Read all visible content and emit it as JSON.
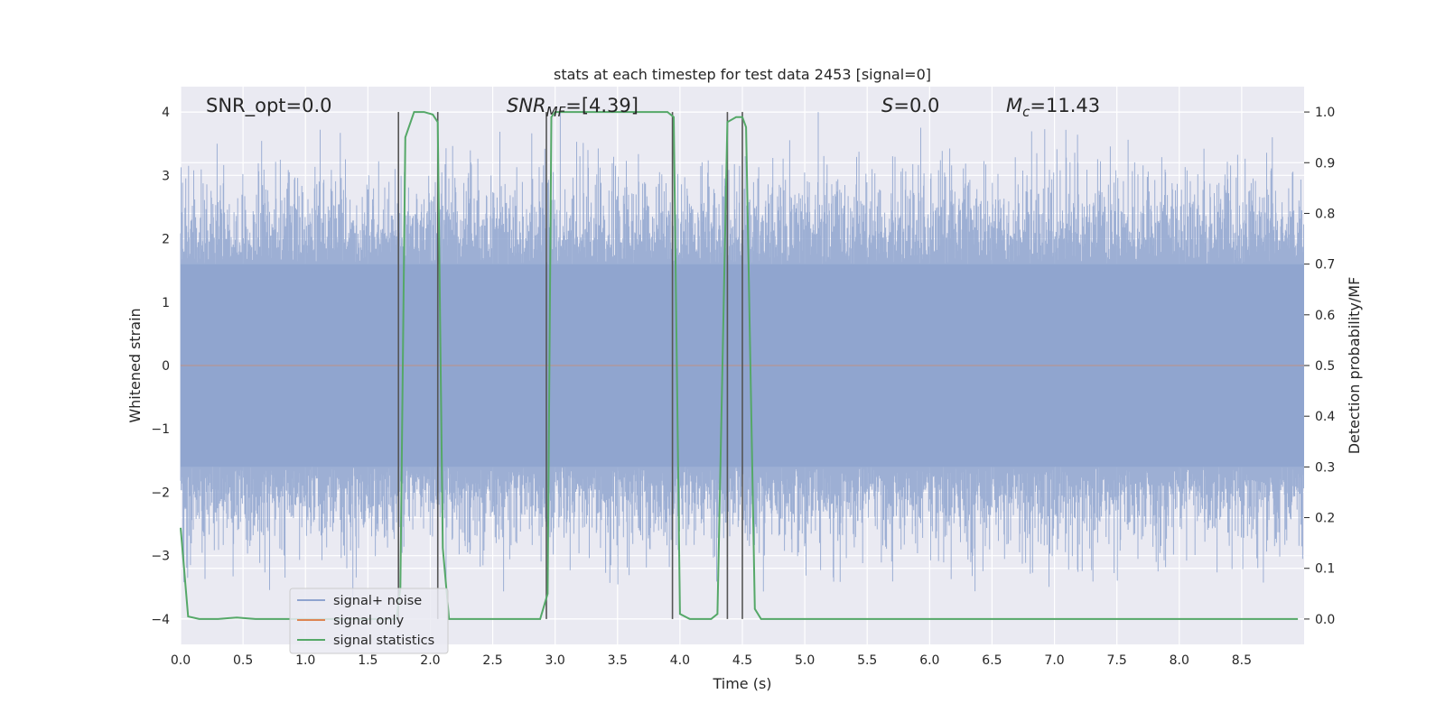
{
  "chart_data": {
    "type": "line",
    "title": "stats at each timestep for test data 2453 [signal=0]",
    "xlabel": "Time (s)",
    "ylabel": "Whitened strain",
    "y2label": "Detection probability/MF",
    "xlim": [
      0,
      9.0
    ],
    "ylim": [
      -4.4,
      4.4
    ],
    "y2lim": [
      -0.05,
      1.05
    ],
    "xticks": [
      "0.0",
      "0.5",
      "1.0",
      "1.5",
      "2.0",
      "2.5",
      "3.0",
      "3.5",
      "4.0",
      "4.5",
      "5.0",
      "5.5",
      "6.0",
      "6.5",
      "7.0",
      "7.5",
      "8.0",
      "8.5"
    ],
    "yticks": [
      "−4",
      "−3",
      "−2",
      "−1",
      "0",
      "1",
      "2",
      "3",
      "4"
    ],
    "y2ticks": [
      "0.0",
      "0.1",
      "0.2",
      "0.3",
      "0.4",
      "0.5",
      "0.6",
      "0.7",
      "0.8",
      "0.9",
      "1.0"
    ],
    "grid": true,
    "legend_position": "lower-left",
    "annotations": {
      "snr_opt": "SNR_opt=0.0",
      "snr_mf_main": "SNR",
      "snr_mf_sub": "MF",
      "snr_mf_value": "=[4.39]",
      "s_main": "S",
      "s_value": "=0.0",
      "mc_main": "M",
      "mc_sub": "c",
      "mc_value": "=11.43"
    },
    "series": [
      {
        "name": "signal+ noise",
        "axis": "left",
        "color": "#8fa4cf",
        "style": "dense noise",
        "amplitude_approx": 1.6,
        "peak_range": [
          -3.9,
          4.0
        ]
      },
      {
        "name": "signal only",
        "axis": "left",
        "color": "#dd8452",
        "values_note": "zero"
      },
      {
        "name": "signal statistics",
        "axis": "right",
        "color": "#55a868",
        "x": [
          0.0,
          0.06,
          0.15,
          0.3,
          0.45,
          0.6,
          0.8,
          1.0,
          1.2,
          1.4,
          1.6,
          1.73,
          1.76,
          1.8,
          1.87,
          1.95,
          2.02,
          2.06,
          2.1,
          2.15,
          2.22,
          2.3,
          2.5,
          2.7,
          2.88,
          2.94,
          2.97,
          3.0,
          3.5,
          3.9,
          3.95,
          4.0,
          4.08,
          4.15,
          4.25,
          4.3,
          4.38,
          4.45,
          4.5,
          4.53,
          4.6,
          4.65,
          4.75,
          5.0,
          6.0,
          7.0,
          8.0,
          8.95
        ],
        "values": [
          0.18,
          0.005,
          0.0,
          0.0,
          0.003,
          0.0,
          0.0,
          0.0,
          0.0,
          0.0,
          0.0,
          0.0,
          0.06,
          0.95,
          1.0,
          1.0,
          0.995,
          0.98,
          0.14,
          0.0,
          0.0,
          0.0,
          0.0,
          0.0,
          0.0,
          0.05,
          0.99,
          1.0,
          1.0,
          1.0,
          0.99,
          0.01,
          0.0,
          0.0,
          0.0,
          0.01,
          0.98,
          0.99,
          0.99,
          0.97,
          0.02,
          0.0,
          0.0,
          0.0,
          0.0,
          0.0,
          0.0,
          0.0
        ]
      }
    ],
    "vertical_lines_x": [
      1.745,
      2.06,
      2.93,
      3.94,
      4.38,
      4.5
    ]
  },
  "legend": {
    "items": [
      {
        "label": "signal+ noise",
        "color": "#8fa4cf"
      },
      {
        "label": "signal only",
        "color": "#dd8452"
      },
      {
        "label": "signal statistics",
        "color": "#55a868"
      }
    ]
  }
}
